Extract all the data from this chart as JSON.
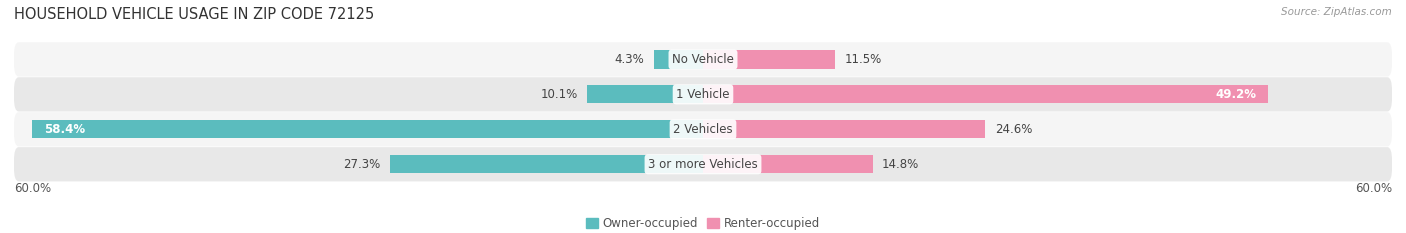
{
  "title": "HOUSEHOLD VEHICLE USAGE IN ZIP CODE 72125",
  "source": "Source: ZipAtlas.com",
  "categories": [
    "No Vehicle",
    "1 Vehicle",
    "2 Vehicles",
    "3 or more Vehicles"
  ],
  "owner_values": [
    4.3,
    10.1,
    58.4,
    27.3
  ],
  "renter_values": [
    11.5,
    49.2,
    24.6,
    14.8
  ],
  "owner_color": "#5bbcbe",
  "renter_color": "#f090b0",
  "row_bg_color_light": "#f5f5f5",
  "row_bg_color_dark": "#e8e8e8",
  "max_value": 60.0,
  "axis_label_left": "60.0%",
  "axis_label_right": "60.0%",
  "legend_owner": "Owner-occupied",
  "legend_renter": "Renter-occupied",
  "title_fontsize": 10.5,
  "label_fontsize": 8.5,
  "source_fontsize": 7.5,
  "bar_height": 0.52,
  "figsize": [
    14.06,
    2.33
  ],
  "dpi": 100
}
